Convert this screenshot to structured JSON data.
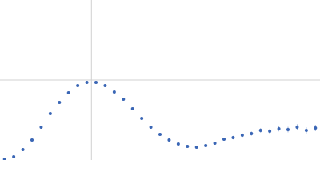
{
  "chart_data": {
    "type": "scatter",
    "xlim": [
      0,
      3.5
    ],
    "ylim": [
      0,
      2
    ],
    "xticks": [
      1
    ],
    "yticks": [
      1
    ],
    "grid": true,
    "series": [
      {
        "color": "#3a66b5",
        "x": [
          0.05,
          0.15,
          0.25,
          0.35,
          0.45,
          0.55,
          0.65,
          0.75,
          0.85,
          0.95,
          1.05,
          1.15,
          1.25,
          1.35,
          1.45,
          1.55,
          1.65,
          1.75,
          1.85,
          1.95,
          2.05,
          2.15,
          2.25,
          2.35,
          2.45,
          2.55,
          2.65,
          2.75,
          2.85,
          2.95,
          3.05,
          3.15,
          3.25,
          3.35,
          3.45
        ],
        "values": [
          0.01,
          0.04,
          0.13,
          0.25,
          0.41,
          0.58,
          0.72,
          0.84,
          0.93,
          0.97,
          0.97,
          0.93,
          0.85,
          0.76,
          0.64,
          0.52,
          0.41,
          0.32,
          0.25,
          0.2,
          0.17,
          0.16,
          0.18,
          0.21,
          0.26,
          0.28,
          0.31,
          0.33,
          0.37,
          0.36,
          0.39,
          0.38,
          0.41,
          0.37,
          0.4
        ],
        "errors": [
          0.003,
          0.003,
          0.003,
          0.004,
          0.004,
          0.004,
          0.005,
          0.005,
          0.005,
          0.006,
          0.006,
          0.006,
          0.007,
          0.007,
          0.008,
          0.008,
          0.009,
          0.01,
          0.011,
          0.012,
          0.013,
          0.014,
          0.016,
          0.018,
          0.02,
          0.022,
          0.024,
          0.026,
          0.028,
          0.03,
          0.032,
          0.034,
          0.036,
          0.038,
          0.04
        ]
      }
    ]
  }
}
